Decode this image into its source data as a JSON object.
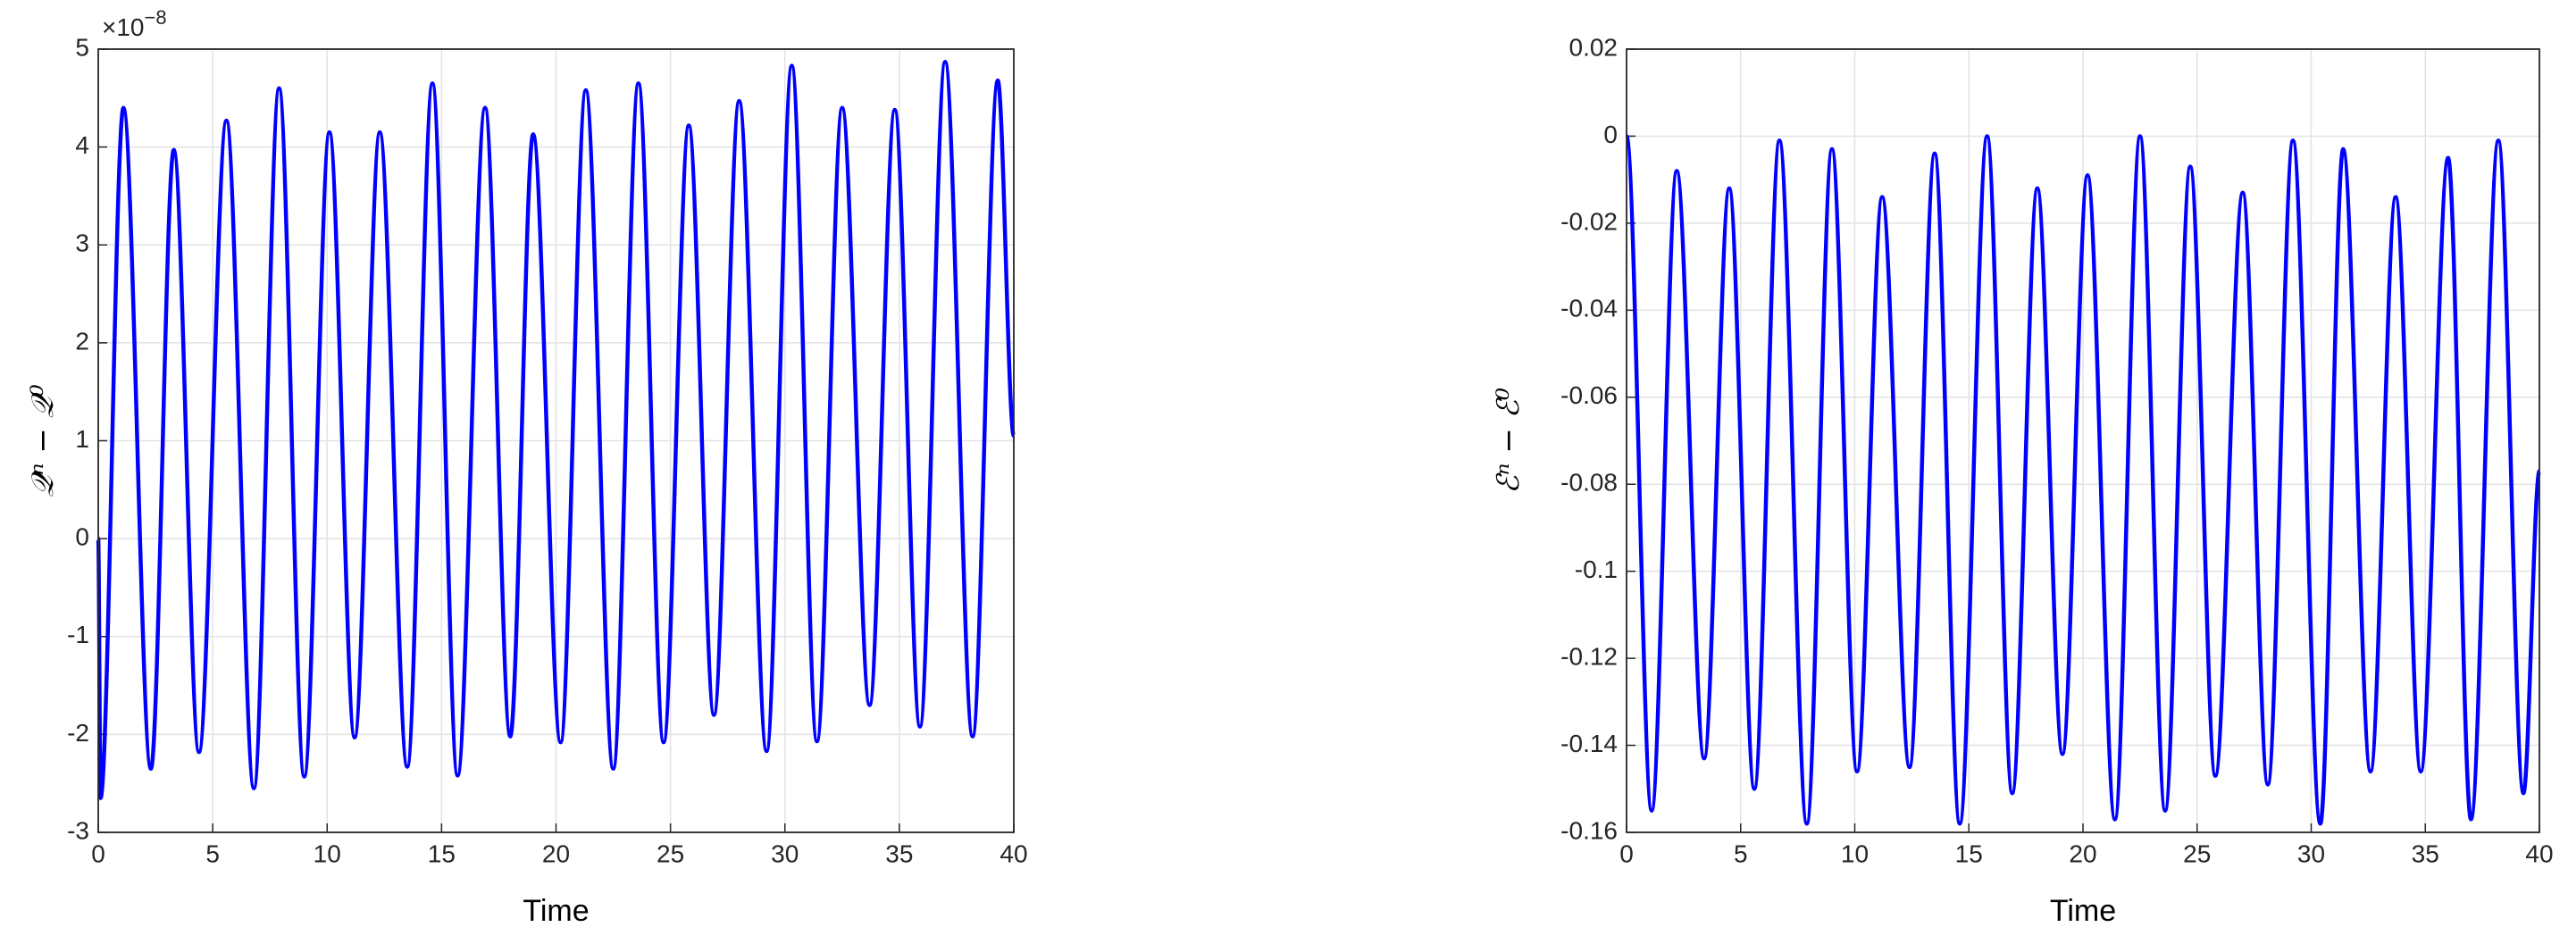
{
  "chart_data": [
    {
      "type": "line",
      "xlabel": "Time",
      "ylabel": "𝒬ⁿ − 𝒬⁰",
      "y_multiplier": {
        "base": "×10",
        "exponent": "−8"
      },
      "x": [
        0,
        0.1,
        1.1,
        2.3,
        3.3,
        4.4,
        5.6,
        6.8,
        7.9,
        9.0,
        10.1,
        11.2,
        12.3,
        13.5,
        14.6,
        15.7,
        16.9,
        18.0,
        19.0,
        20.2,
        21.3,
        22.5,
        23.6,
        24.7,
        25.8,
        26.9,
        28.0,
        29.2,
        30.3,
        31.4,
        32.5,
        33.7,
        34.8,
        35.9,
        37.0,
        38.2,
        39.3,
        40
      ],
      "values": [
        0,
        -2.65,
        4.4,
        -2.35,
        3.97,
        -2.18,
        4.27,
        -2.55,
        4.6,
        -2.43,
        4.15,
        -2.03,
        4.15,
        -2.33,
        4.65,
        -2.42,
        4.4,
        -2.02,
        4.13,
        -2.08,
        4.58,
        -2.35,
        4.65,
        -2.08,
        4.22,
        -1.8,
        4.47,
        -2.17,
        4.83,
        -2.07,
        4.4,
        -1.7,
        4.38,
        -1.92,
        4.87,
        -2.02,
        4.68,
        1.05
      ],
      "color": "#0000ff",
      "grid": true,
      "xlim": [
        0,
        40
      ],
      "xticks": [
        0,
        5,
        10,
        15,
        20,
        25,
        30,
        35,
        40
      ],
      "ylim": [
        -3,
        5
      ],
      "yticks": [
        -3,
        -2,
        -1,
        0,
        1,
        2,
        3,
        4,
        5
      ]
    },
    {
      "type": "line",
      "xlabel": "Time",
      "ylabel": "ℰⁿ − ℰ⁰",
      "x": [
        0,
        1.1,
        2.2,
        3.4,
        4.5,
        5.6,
        6.7,
        7.9,
        9.0,
        10.1,
        11.2,
        12.4,
        13.5,
        14.6,
        15.8,
        16.9,
        18.0,
        19.1,
        20.2,
        21.4,
        22.5,
        23.6,
        24.7,
        25.8,
        27.0,
        28.1,
        29.2,
        30.4,
        31.4,
        32.6,
        33.7,
        34.8,
        36.0,
        37.0,
        38.2,
        39.3,
        40
      ],
      "values": [
        0,
        -0.155,
        -0.008,
        -0.143,
        -0.012,
        -0.15,
        -0.001,
        -0.158,
        -0.003,
        -0.146,
        -0.014,
        -0.145,
        -0.004,
        -0.158,
        0,
        -0.151,
        -0.012,
        -0.142,
        -0.009,
        -0.157,
        0,
        -0.155,
        -0.007,
        -0.147,
        -0.013,
        -0.149,
        -0.001,
        -0.158,
        -0.003,
        -0.146,
        -0.014,
        -0.146,
        -0.005,
        -0.157,
        -0.001,
        -0.151,
        -0.077
      ],
      "color": "#0000ff",
      "grid": true,
      "xlim": [
        0,
        40
      ],
      "xticks": [
        0,
        5,
        10,
        15,
        20,
        25,
        30,
        35,
        40
      ],
      "ylim": [
        -0.16,
        0.02
      ],
      "yticks": [
        -0.16,
        -0.14,
        -0.12,
        -0.1,
        -0.08,
        -0.06,
        -0.04,
        -0.02,
        0,
        0.02
      ]
    }
  ]
}
